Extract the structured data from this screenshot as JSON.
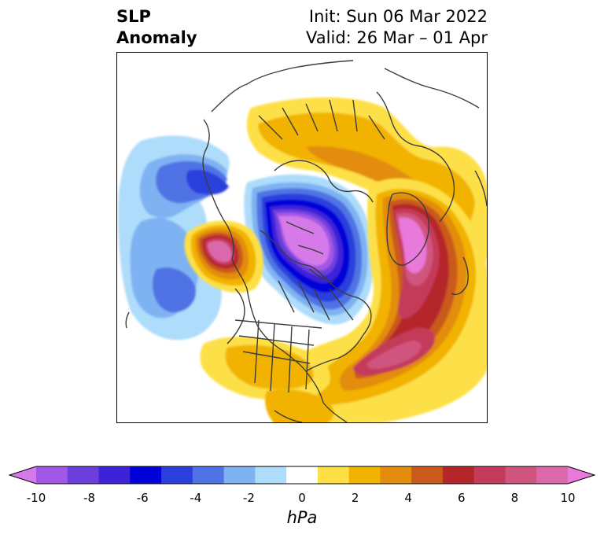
{
  "header": {
    "title_line1": "SLP",
    "title_line2": "Anomaly",
    "init_text": "Init: Sun 06 Mar 2022",
    "valid_text": "Valid: 26 Mar – 01 Apr"
  },
  "map": {
    "projection": "polar stereographic (North America / Arctic)",
    "field": "sea level pressure anomaly",
    "features": [
      {
        "kind": "negative",
        "center": "Arctic / north of Canada",
        "min_hPa": -9
      },
      {
        "kind": "negative",
        "center": "Gulf of Alaska (west)",
        "min_hPa": -4
      },
      {
        "kind": "negative",
        "center": "northeast Pacific (southwest)",
        "min_hPa": -3
      },
      {
        "kind": "positive",
        "center": "Bering Sea / Aleutians",
        "max_hPa": 8
      },
      {
        "kind": "positive",
        "center": "Greenland / Iceland",
        "max_hPa": 10
      },
      {
        "kind": "positive",
        "center": "western North Atlantic",
        "max_hPa": 8
      },
      {
        "kind": "positive",
        "center": "Siberia / Arctic rim",
        "max_hPa": 3
      }
    ]
  },
  "colorbar": {
    "units": "hPa",
    "tick_labels": [
      "-10",
      "-8",
      "-6",
      "-4",
      "-2",
      "0",
      "2",
      "4",
      "6",
      "8",
      "10"
    ],
    "colors": [
      "#d67ae9",
      "#a357e6",
      "#6c3fdc",
      "#3c23d8",
      "#0000d8",
      "#2a3fdc",
      "#4f73e4",
      "#7fb2f2",
      "#aedcfb",
      "#ffffff",
      "#fde046",
      "#f1b300",
      "#e38c0e",
      "#c95a1c",
      "#b5262b",
      "#c43a5a",
      "#d0557e",
      "#dc68ac",
      "#e979da"
    ],
    "extend": "both"
  }
}
